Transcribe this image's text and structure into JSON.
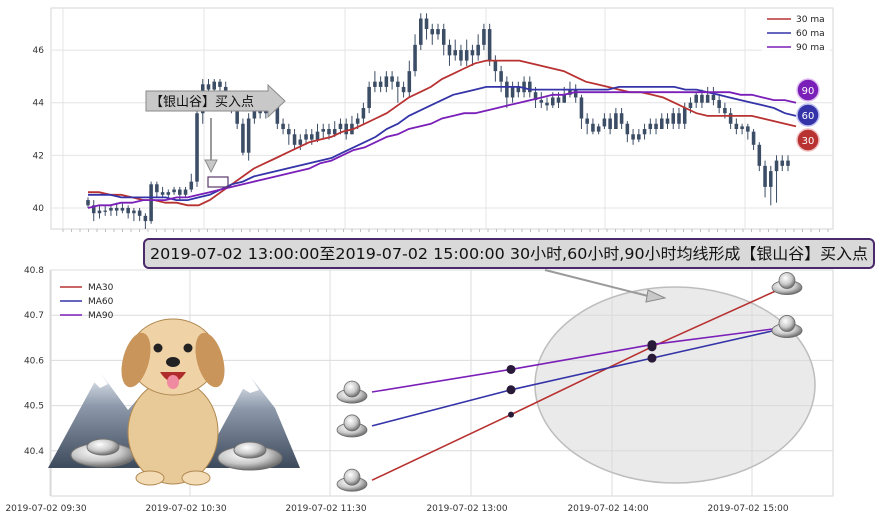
{
  "chart_data": [
    {
      "type": "candlestick",
      "ylim": [
        39.2,
        47.6
      ],
      "y_ticks": [
        "40",
        "42",
        "44",
        "46"
      ],
      "grid": true,
      "legend_position": "top-right",
      "series": [
        {
          "name": "30 ma",
          "color": "#b83232"
        },
        {
          "name": "60 ma",
          "color": "#3434a8"
        },
        {
          "name": "90 ma",
          "color": "#7a1fb8"
        }
      ],
      "end_badges": [
        {
          "label": "90",
          "color": "#7a1fb8"
        },
        {
          "label": "60",
          "color": "#3434a8"
        },
        {
          "label": "30",
          "color": "#b83232"
        }
      ],
      "annotation": "【银山谷】买入点",
      "candles": [
        [
          40.3,
          40.1,
          40.4,
          40.0
        ],
        [
          40.1,
          39.8,
          40.3,
          39.5
        ],
        [
          39.8,
          39.9,
          40.1,
          39.6
        ],
        [
          39.9,
          39.9,
          40.1,
          39.7
        ],
        [
          39.9,
          40.0,
          40.1,
          39.7
        ],
        [
          40.0,
          39.9,
          40.2,
          39.7
        ],
        [
          39.9,
          40.0,
          40.2,
          39.8
        ],
        [
          40.0,
          39.8,
          40.1,
          39.6
        ],
        [
          39.8,
          39.9,
          40.0,
          39.5
        ],
        [
          39.9,
          39.7,
          40.0,
          39.5
        ],
        [
          39.7,
          39.5,
          39.8,
          39.2
        ],
        [
          39.5,
          40.9,
          41.0,
          39.4
        ],
        [
          40.9,
          40.6,
          41.0,
          40.4
        ],
        [
          40.6,
          40.5,
          40.8,
          40.4
        ],
        [
          40.5,
          40.6,
          40.7,
          40.4
        ],
        [
          40.6,
          40.7,
          40.8,
          40.5
        ],
        [
          40.7,
          40.5,
          40.8,
          40.3
        ],
        [
          40.5,
          40.7,
          40.8,
          40.4
        ],
        [
          40.7,
          41.0,
          41.3,
          40.6
        ],
        [
          41.0,
          43.6,
          44.0,
          40.8
        ],
        [
          43.6,
          44.7,
          44.9,
          43.2
        ],
        [
          44.7,
          44.5,
          44.9,
          44.2
        ],
        [
          44.5,
          44.8,
          44.9,
          44.4
        ],
        [
          44.8,
          44.6,
          44.9,
          44.3
        ],
        [
          44.6,
          44.2,
          44.8,
          44.0
        ],
        [
          44.2,
          43.8,
          44.4,
          43.6
        ],
        [
          43.8,
          43.2,
          44.0,
          43.0
        ],
        [
          43.2,
          42.1,
          43.4,
          42.0
        ],
        [
          42.1,
          43.4,
          43.6,
          41.8
        ],
        [
          43.4,
          43.8,
          44.0,
          43.2
        ],
        [
          43.8,
          43.6,
          44.0,
          43.4
        ],
        [
          43.6,
          44.0,
          44.2,
          43.4
        ],
        [
          44.0,
          43.9,
          44.2,
          43.6
        ],
        [
          43.9,
          43.2,
          44.0,
          43.0
        ],
        [
          43.2,
          43.0,
          43.4,
          42.8
        ],
        [
          43.0,
          42.8,
          43.2,
          42.4
        ],
        [
          42.8,
          42.4,
          43.0,
          42.2
        ],
        [
          42.4,
          42.6,
          42.8,
          42.2
        ],
        [
          42.6,
          42.8,
          43.0,
          42.4
        ],
        [
          42.8,
          42.6,
          43.0,
          42.4
        ],
        [
          42.6,
          42.9,
          43.2,
          42.5
        ],
        [
          42.9,
          43.0,
          43.2,
          42.6
        ],
        [
          43.0,
          42.8,
          43.2,
          42.6
        ],
        [
          42.8,
          43.0,
          43.3,
          42.7
        ],
        [
          43.0,
          43.2,
          43.4,
          42.8
        ],
        [
          43.2,
          42.8,
          43.4,
          42.6
        ],
        [
          42.8,
          43.2,
          43.5,
          42.8
        ],
        [
          43.2,
          43.4,
          43.6,
          43.0
        ],
        [
          43.4,
          43.8,
          44.0,
          43.2
        ],
        [
          43.8,
          44.6,
          44.8,
          43.6
        ],
        [
          44.6,
          44.8,
          45.2,
          44.4
        ],
        [
          44.8,
          44.6,
          45.0,
          44.4
        ],
        [
          44.6,
          45.0,
          45.2,
          44.4
        ],
        [
          45.0,
          44.8,
          45.2,
          44.5
        ],
        [
          44.8,
          44.6,
          45.0,
          44.0
        ],
        [
          44.6,
          44.4,
          44.8,
          44.2
        ],
        [
          44.4,
          45.2,
          45.6,
          44.2
        ],
        [
          45.2,
          46.2,
          46.6,
          45.0
        ],
        [
          46.2,
          47.2,
          47.4,
          46.0
        ],
        [
          47.2,
          46.8,
          47.4,
          46.4
        ],
        [
          46.8,
          46.6,
          47.0,
          46.2
        ],
        [
          46.6,
          46.8,
          47.0,
          46.4
        ],
        [
          46.8,
          46.2,
          47.0,
          45.8
        ],
        [
          46.2,
          45.8,
          46.4,
          45.4
        ],
        [
          45.8,
          46.0,
          46.4,
          45.6
        ],
        [
          46.0,
          45.6,
          46.2,
          45.4
        ],
        [
          45.6,
          46.0,
          46.4,
          45.4
        ],
        [
          46.0,
          45.8,
          46.2,
          45.4
        ],
        [
          45.8,
          46.2,
          46.6,
          45.6
        ],
        [
          46.2,
          46.8,
          47.0,
          46.0
        ],
        [
          46.8,
          45.6,
          47.0,
          45.4
        ],
        [
          45.6,
          45.2,
          45.8,
          44.8
        ],
        [
          45.2,
          44.8,
          45.4,
          44.4
        ],
        [
          44.8,
          44.2,
          45.0,
          43.8
        ],
        [
          44.2,
          44.6,
          44.8,
          44.0
        ],
        [
          44.6,
          44.4,
          44.8,
          44.2
        ],
        [
          44.4,
          44.8,
          45.0,
          44.2
        ],
        [
          44.8,
          44.4,
          45.0,
          44.2
        ],
        [
          44.4,
          44.1,
          44.6,
          43.8
        ],
        [
          44.1,
          44.0,
          44.4,
          43.8
        ],
        [
          44.0,
          43.9,
          44.2,
          43.7
        ],
        [
          43.9,
          44.2,
          44.4,
          43.8
        ],
        [
          44.2,
          44.0,
          44.4,
          43.8
        ],
        [
          44.0,
          44.3,
          44.6,
          44.0
        ],
        [
          44.3,
          44.5,
          44.8,
          44.2
        ],
        [
          44.5,
          44.2,
          44.7,
          44.0
        ],
        [
          44.2,
          43.4,
          44.3,
          43.0
        ],
        [
          43.4,
          43.2,
          43.6,
          42.8
        ],
        [
          43.2,
          42.9,
          43.4,
          42.8
        ],
        [
          42.9,
          43.1,
          43.2,
          42.8
        ],
        [
          43.1,
          43.4,
          43.6,
          43.0
        ],
        [
          43.4,
          43.0,
          43.6,
          42.8
        ],
        [
          43.0,
          43.6,
          43.8,
          43.0
        ],
        [
          43.6,
          43.2,
          43.8,
          43.0
        ],
        [
          43.2,
          42.8,
          43.3,
          42.5
        ],
        [
          42.8,
          42.6,
          43.0,
          42.4
        ],
        [
          42.6,
          42.8,
          43.0,
          42.5
        ],
        [
          42.8,
          43.0,
          43.2,
          42.6
        ],
        [
          43.0,
          43.2,
          43.4,
          42.8
        ],
        [
          43.2,
          43.0,
          43.4,
          42.8
        ],
        [
          43.0,
          43.4,
          43.6,
          43.0
        ],
        [
          43.4,
          43.2,
          43.6,
          43.0
        ],
        [
          43.2,
          43.6,
          43.8,
          43.0
        ],
        [
          43.6,
          43.2,
          43.8,
          43.0
        ],
        [
          43.2,
          43.8,
          44.0,
          43.0
        ],
        [
          43.8,
          44.0,
          44.2,
          43.6
        ],
        [
          44.0,
          44.3,
          44.4,
          43.8
        ],
        [
          44.3,
          44.0,
          44.5,
          43.8
        ],
        [
          44.0,
          44.3,
          44.6,
          44.0
        ],
        [
          44.3,
          44.1,
          44.6,
          43.9
        ],
        [
          44.1,
          43.8,
          44.3,
          43.6
        ],
        [
          43.8,
          43.6,
          44.0,
          43.4
        ],
        [
          43.6,
          43.2,
          43.8,
          43.0
        ],
        [
          43.2,
          43.0,
          43.4,
          42.8
        ],
        [
          43.0,
          43.1,
          43.2,
          42.8
        ],
        [
          43.1,
          42.9,
          43.2,
          42.6
        ],
        [
          42.9,
          42.4,
          43.0,
          42.2
        ],
        [
          42.4,
          41.6,
          42.5,
          41.4
        ],
        [
          41.6,
          40.8,
          41.8,
          40.4
        ],
        [
          40.8,
          41.4,
          41.6,
          40.1
        ],
        [
          41.4,
          41.8,
          42.0,
          40.2
        ],
        [
          41.8,
          41.6,
          42.0,
          41.4
        ],
        [
          41.6,
          41.8,
          42.0,
          41.4
        ]
      ],
      "ma30": [
        40.6,
        40.6,
        40.5,
        40.5,
        40.4,
        40.3,
        40.3,
        40.2,
        40.2,
        40.1,
        40.1,
        40.3,
        40.6,
        40.9,
        41.2,
        41.5,
        41.7,
        41.9,
        42.1,
        42.3,
        42.5,
        42.6,
        42.7,
        42.9,
        43.0,
        43.2,
        43.4,
        43.6,
        43.9,
        44.2,
        44.4,
        44.6,
        44.9,
        45.1,
        45.3,
        45.5,
        45.6,
        45.6,
        45.6,
        45.6,
        45.5,
        45.4,
        45.3,
        45.2,
        45.0,
        44.8,
        44.7,
        44.6,
        44.5,
        44.4,
        44.4,
        44.3,
        44.2,
        44.0,
        43.8,
        43.6,
        43.5,
        43.5,
        43.5,
        43.5,
        43.5,
        43.4,
        43.3,
        43.2,
        43.1
      ],
      "ma60": [
        40.5,
        40.5,
        40.5,
        40.4,
        40.4,
        40.4,
        40.4,
        40.4,
        40.3,
        40.3,
        40.4,
        40.5,
        40.7,
        40.9,
        41.0,
        41.2,
        41.3,
        41.4,
        41.5,
        41.6,
        41.7,
        41.8,
        41.9,
        42.1,
        42.3,
        42.5,
        42.7,
        43.0,
        43.2,
        43.5,
        43.7,
        43.9,
        44.1,
        44.3,
        44.4,
        44.5,
        44.6,
        44.6,
        44.6,
        44.6,
        44.5,
        44.5,
        44.5,
        44.5,
        44.5,
        44.5,
        44.5,
        44.5,
        44.6,
        44.6,
        44.6,
        44.6,
        44.6,
        44.6,
        44.5,
        44.5,
        44.4,
        44.3,
        44.2,
        44.1,
        44.0,
        43.9,
        43.8,
        43.6,
        43.5
      ],
      "ma90": [
        40.0,
        40.1,
        40.1,
        40.2,
        40.2,
        40.3,
        40.3,
        40.3,
        40.4,
        40.4,
        40.5,
        40.6,
        40.7,
        40.8,
        40.9,
        41.0,
        41.1,
        41.2,
        41.3,
        41.4,
        41.5,
        41.7,
        41.8,
        42.0,
        42.2,
        42.3,
        42.5,
        42.7,
        42.8,
        43.0,
        43.1,
        43.2,
        43.4,
        43.5,
        43.6,
        43.6,
        43.7,
        43.8,
        43.9,
        44.0,
        44.1,
        44.2,
        44.3,
        44.3,
        44.4,
        44.4,
        44.4,
        44.4,
        44.4,
        44.4,
        44.4,
        44.4,
        44.4,
        44.4,
        44.4,
        44.4,
        44.4,
        44.4,
        44.4,
        44.3,
        44.3,
        44.2,
        44.1,
        44.1,
        44.0
      ]
    },
    {
      "type": "line",
      "ylim": [
        40.3,
        40.8
      ],
      "y_ticks": [
        "40.4",
        "40.5",
        "40.6",
        "40.7",
        "40.8"
      ],
      "x_ticks": [
        "2019-07-02 09:30",
        "2019-07-02 10:30",
        "2019-07-02 11:30",
        "2019-07-02 13:00",
        "2019-07-02 14:00",
        "2019-07-02 15:00"
      ],
      "grid": true,
      "legend_position": "top-left",
      "series": [
        {
          "name": "MA30",
          "color": "#b83232",
          "values": [
            40.335,
            40.48,
            40.63,
            40.77
          ]
        },
        {
          "name": "MA60",
          "color": "#3434a8",
          "values": [
            40.455,
            40.535,
            40.605,
            40.675
          ]
        },
        {
          "name": "MA90",
          "color": "#7a1fb8",
          "values": [
            40.53,
            40.58,
            40.635,
            40.675
          ]
        }
      ],
      "banner": "2019-07-02 13:00:00至2019-07-02 15:00:00 30小时,60小时,90小时均线形成【银山谷】买入点"
    }
  ]
}
